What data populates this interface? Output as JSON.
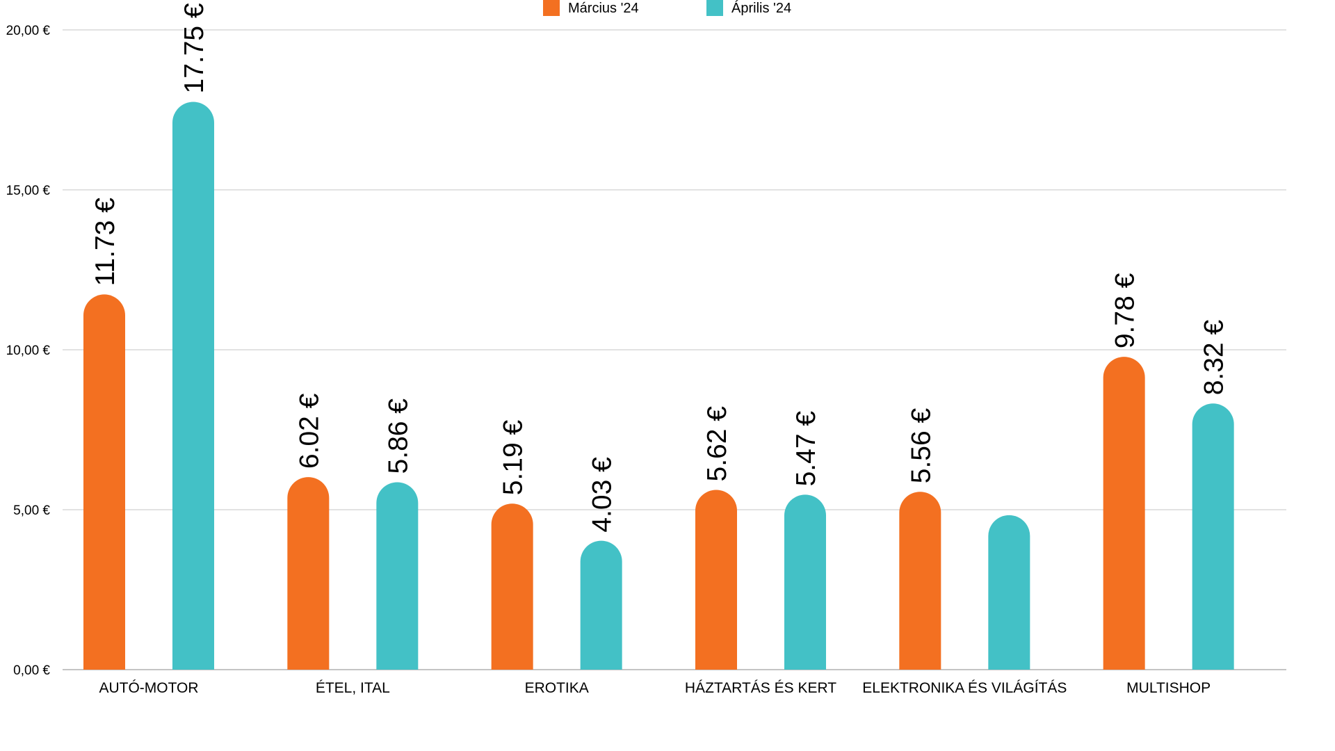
{
  "chart_data": {
    "type": "bar",
    "title": "",
    "xlabel": "",
    "ylabel": "",
    "ylim": [
      0,
      20
    ],
    "grid": true,
    "legend_position": "top-center",
    "categories": [
      "AUTÓ-MOTOR",
      "ÉTEL, ITAL",
      "EROTIKA",
      "HÁZTARTÁS ÉS KERT",
      "ELEKTRONIKA ÉS VILÁGÍTÁS",
      "MULTISHOP"
    ],
    "y_ticks": [
      0,
      5,
      10,
      15,
      20
    ],
    "y_tick_labels": [
      "0,00 €",
      "5,00 €",
      "10,00 €",
      "15,00 €",
      "20,00 €"
    ],
    "series": [
      {
        "name": "Március '24",
        "color": "#f37021",
        "values": [
          11.73,
          6.02,
          5.19,
          5.62,
          5.56,
          9.78
        ],
        "labels": [
          "11.73 €",
          "6.02 €",
          "5.19 €",
          "5.62 €",
          "5.56 €",
          "9.78 €"
        ]
      },
      {
        "name": "Április '24",
        "color": "#43c1c6",
        "values": [
          17.75,
          5.86,
          4.03,
          5.47,
          4.83,
          8.32
        ],
        "labels": [
          "17.75 €",
          "5.86 €",
          "4.03 €",
          "5.47 €",
          "",
          "8.32 €"
        ]
      }
    ]
  }
}
